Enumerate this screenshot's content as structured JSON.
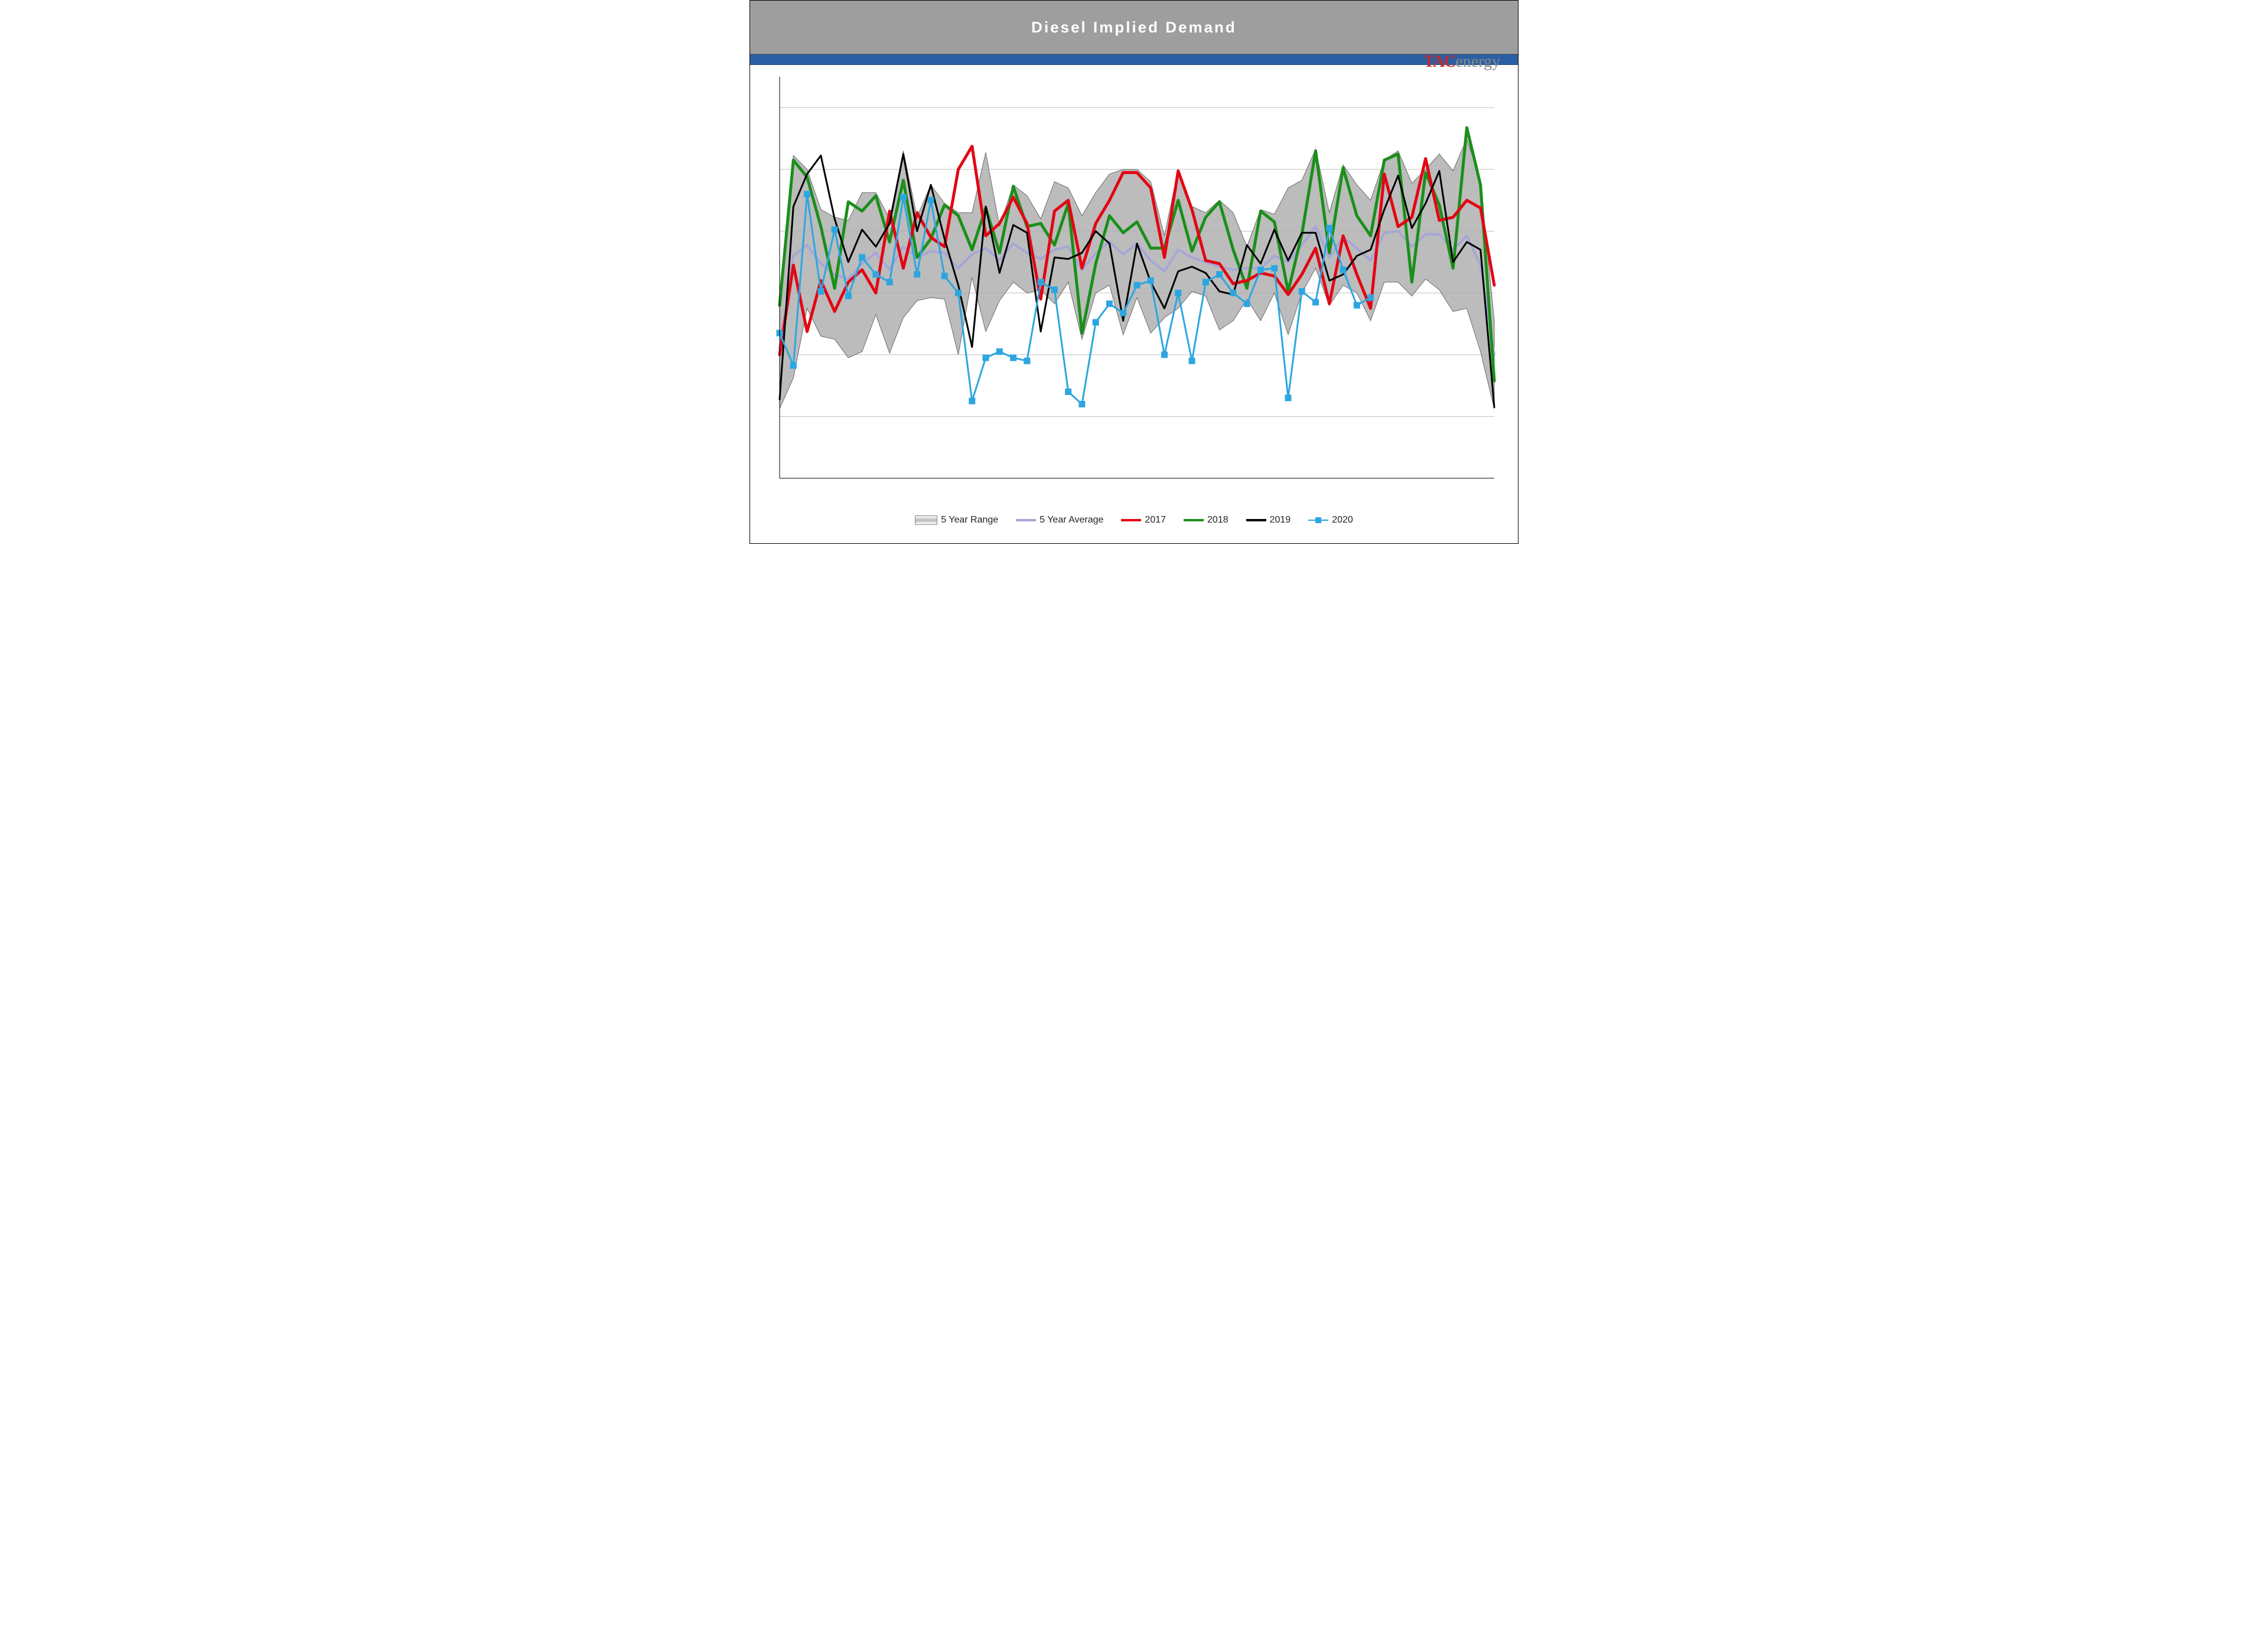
{
  "title": "Diesel Implied Demand",
  "logo": {
    "tac": "TAC",
    "energy": "energy"
  },
  "chart": {
    "type": "line",
    "background_color": "#ffffff",
    "title_bar_color": "#9e9e9e",
    "title_text_color": "#ffffff",
    "blue_bar_color": "#2b5fa3",
    "grid_color": "#bfbfbf",
    "axis_color": "#000000",
    "n_points": 53,
    "ylim": [
      2600,
      5200
    ],
    "ytick_step": 400,
    "xlim": [
      0,
      52
    ],
    "range_fill": "#b0b0b0",
    "range_stroke": "#6b6b6b",
    "series": {
      "range_high": [
        3700,
        4690,
        4600,
        4340,
        4290,
        4270,
        4450,
        4450,
        4280,
        4720,
        4290,
        4500,
        4380,
        4320,
        4320,
        4710,
        4230,
        4500,
        4430,
        4280,
        4520,
        4480,
        4300,
        4450,
        4570,
        4600,
        4600,
        4520,
        4170,
        4600,
        4360,
        4320,
        4400,
        4320,
        4100,
        4340,
        4310,
        4480,
        4530,
        4730,
        4320,
        4630,
        4500,
        4400,
        4660,
        4720,
        4510,
        4600,
        4700,
        4590,
        4800,
        4520,
        3620
      ],
      "range_low": [
        3050,
        3250,
        3700,
        3520,
        3500,
        3380,
        3420,
        3660,
        3410,
        3640,
        3750,
        3770,
        3760,
        3400,
        3900,
        3550,
        3750,
        3870,
        3800,
        3820,
        3730,
        3870,
        3500,
        3800,
        3850,
        3530,
        3770,
        3540,
        3640,
        3700,
        3810,
        3780,
        3560,
        3620,
        3760,
        3620,
        3800,
        3530,
        3800,
        3960,
        3720,
        3850,
        3800,
        3620,
        3870,
        3870,
        3780,
        3890,
        3820,
        3680,
        3700,
        3420,
        3050
      ],
      "avg": {
        "color": "#a6a6d8",
        "width": 4,
        "values": [
          3440,
          4040,
          4110,
          3990,
          3920,
          3890,
          3990,
          4060,
          3950,
          4100,
          4030,
          4070,
          4060,
          3960,
          4050,
          4090,
          4010,
          4120,
          4060,
          4020,
          4080,
          4100,
          3950,
          4060,
          4130,
          4050,
          4120,
          4010,
          3940,
          4080,
          4030,
          4000,
          3970,
          3950,
          3960,
          3960,
          4040,
          4000,
          4110,
          4230,
          4030,
          4160,
          4090,
          4010,
          4190,
          4200,
          4100,
          4180,
          4180,
          4080,
          4170,
          3980,
          3400
        ]
      },
      "y2017": {
        "color": "#e30613",
        "width": 5,
        "values": [
          3400,
          3980,
          3550,
          3880,
          3680,
          3870,
          3950,
          3800,
          4330,
          3960,
          4320,
          4160,
          4100,
          4600,
          4750,
          4170,
          4250,
          4420,
          4250,
          3760,
          4330,
          4400,
          3960,
          4250,
          4400,
          4580,
          4580,
          4480,
          4030,
          4590,
          4340,
          4010,
          3990,
          3860,
          3880,
          3930,
          3910,
          3790,
          3920,
          4090,
          3730,
          4170,
          3920,
          3700,
          4570,
          4230,
          4290,
          4670,
          4270,
          4290,
          4400,
          4350,
          3850
        ]
      },
      "y2018": {
        "color": "#1a8f1a",
        "width": 5,
        "values": [
          3720,
          4660,
          4550,
          4230,
          3830,
          4390,
          4330,
          4430,
          4130,
          4530,
          4030,
          4150,
          4370,
          4300,
          4080,
          4350,
          4060,
          4490,
          4230,
          4250,
          4110,
          4380,
          3540,
          3990,
          4300,
          4190,
          4260,
          4090,
          4090,
          4400,
          4070,
          4290,
          4390,
          4080,
          3830,
          4330,
          4260,
          3810,
          4180,
          4720,
          4060,
          4610,
          4300,
          4170,
          4660,
          4700,
          3870,
          4580,
          4370,
          3960,
          4870,
          4500,
          3230
        ]
      },
      "y2019": {
        "color": "#000000",
        "width": 3,
        "values": [
          3110,
          4360,
          4570,
          4690,
          4280,
          4000,
          4210,
          4100,
          4250,
          4700,
          4200,
          4500,
          4150,
          3850,
          3450,
          4360,
          3930,
          4240,
          4190,
          3550,
          4030,
          4020,
          4060,
          4200,
          4120,
          3620,
          4120,
          3870,
          3700,
          3940,
          3970,
          3930,
          3810,
          3790,
          4110,
          3990,
          4210,
          4010,
          4190,
          4190,
          3880,
          3920,
          4040,
          4080,
          4340,
          4560,
          4220,
          4380,
          4590,
          4000,
          4130,
          4080,
          3060
        ]
      },
      "y2020": {
        "color": "#2ca6e0",
        "width": 3,
        "marker": "square",
        "marker_size": 10,
        "values": [
          3540,
          3330,
          4440,
          3810,
          4210,
          3780,
          4030,
          3920,
          3870,
          4420,
          3920,
          4400,
          3910,
          3800,
          3100,
          3380,
          3420,
          3380,
          3360,
          3870,
          3820,
          3160,
          3080,
          3610,
          3730,
          3670,
          3850,
          3880,
          3400,
          3800,
          3360,
          3870,
          3920,
          3800,
          3730,
          3950,
          3960,
          3120,
          3810,
          3740,
          4220,
          3950,
          3720,
          3770
        ]
      }
    },
    "legend": [
      {
        "key": "range",
        "label": "5 Year Range"
      },
      {
        "key": "avg",
        "label": "5 Year Average"
      },
      {
        "key": "y2017",
        "label": "2017"
      },
      {
        "key": "y2018",
        "label": "2018"
      },
      {
        "key": "y2019",
        "label": "2019"
      },
      {
        "key": "y2020",
        "label": "2020"
      }
    ]
  }
}
